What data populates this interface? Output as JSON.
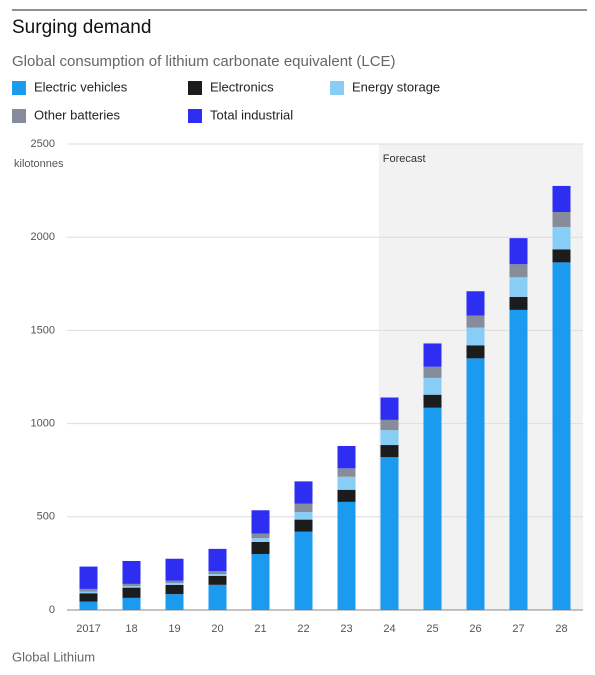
{
  "chart_data": {
    "type": "stacked_bar",
    "title": "Surging demand",
    "subtitle": "Global consumption of lithium carbonate equivalent (LCE)",
    "y_axis_label": "kilotonnes",
    "source": "Global Lithium",
    "forecast_label": "Forecast",
    "forecast_start": "24",
    "categories": [
      "2017",
      "18",
      "19",
      "20",
      "21",
      "22",
      "23",
      "24",
      "25",
      "26",
      "27",
      "28"
    ],
    "series": [
      {
        "name": "Electric vehicles",
        "color": "#1a9bf0",
        "values": [
          45,
          65,
          85,
          135,
          300,
          420,
          580,
          820,
          1085,
          1350,
          1610,
          1865
        ]
      },
      {
        "name": "Electronics",
        "color": "#1c1c1c",
        "values": [
          45,
          55,
          50,
          48,
          65,
          65,
          65,
          65,
          70,
          70,
          70,
          70
        ]
      },
      {
        "name": "Energy storage",
        "color": "#88cdf6",
        "values": [
          8,
          8,
          10,
          10,
          20,
          40,
          70,
          80,
          90,
          95,
          105,
          120
        ]
      },
      {
        "name": "Other batteries",
        "color": "#878c9b",
        "values": [
          15,
          12,
          12,
          15,
          25,
          45,
          45,
          55,
          60,
          65,
          70,
          80
        ]
      },
      {
        "name": "Total industrial",
        "color": "#2e2ef2",
        "values": [
          120,
          123,
          118,
          120,
          125,
          120,
          120,
          120,
          125,
          130,
          140,
          140
        ]
      }
    ],
    "ylim": [
      0,
      2500
    ],
    "yticks": [
      0,
      500,
      1000,
      1500,
      2000,
      2500
    ],
    "grid": true
  }
}
